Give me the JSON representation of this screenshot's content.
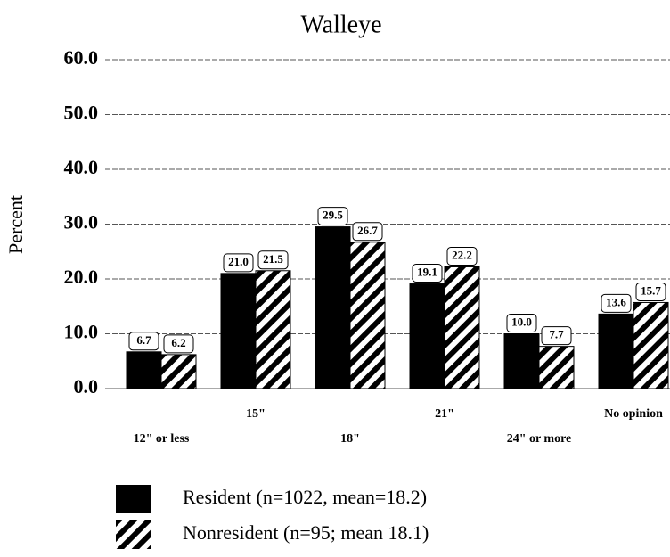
{
  "chart_data": {
    "type": "bar",
    "title": "Walleye",
    "y_label": "Percent",
    "categories": [
      "12\" or less",
      "15\"",
      "18\"",
      "21\"",
      "24\" or more",
      "No opinion"
    ],
    "series": [
      {
        "name": "Resident (n=1022, mean=18.2)",
        "color": "#000000",
        "hatch": false,
        "values": [
          6.7,
          21.0,
          29.5,
          19.1,
          10.0,
          13.6
        ],
        "value_labels": [
          "6.7",
          "21.0",
          "29.5",
          "19.1",
          "10.0",
          "13.6"
        ]
      },
      {
        "name": "Nonresident (n=95; mean 18.1)",
        "color": "#000000",
        "hatch": true,
        "values": [
          6.2,
          21.5,
          26.7,
          22.2,
          7.7,
          15.7
        ],
        "value_labels": [
          "6.2",
          "21.5",
          "26.7",
          "22.2",
          "7.7",
          "15.7"
        ]
      }
    ],
    "ylim": [
      0,
      60
    ],
    "yticks": [
      {
        "value": 0,
        "label": "0.0"
      },
      {
        "value": 10,
        "label": "10.0"
      },
      {
        "value": 20,
        "label": "20.0"
      },
      {
        "value": 30,
        "label": "30.0"
      },
      {
        "value": 40,
        "label": "40.0"
      },
      {
        "value": 50,
        "label": "50.0"
      },
      {
        "value": 60,
        "label": "60.0"
      }
    ],
    "grid": true
  }
}
